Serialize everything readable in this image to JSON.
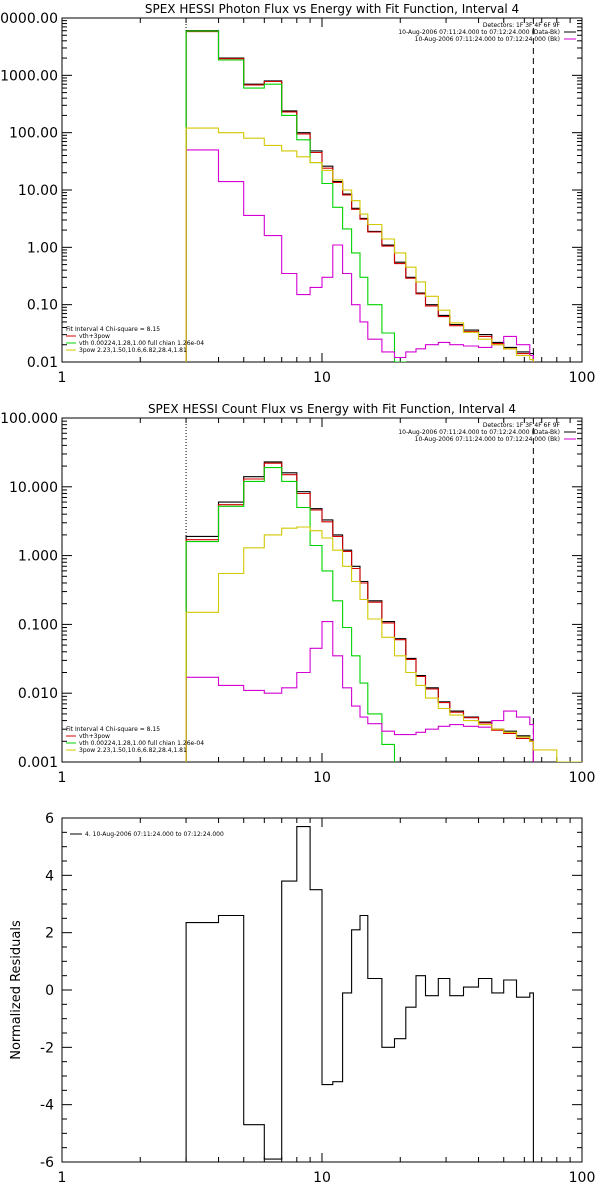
{
  "colors": {
    "black": "#000000",
    "red": "#d40000",
    "green": "#00d400",
    "magenta": "#d400d4",
    "gold": "#d4c800"
  },
  "chart_data": [
    {
      "type": "line",
      "title": "SPEX HESSI Photon Flux vs Energy with Fit Function, Interval 4",
      "xlabel": "",
      "ylabel": "",
      "x_scale": "log",
      "y_scale": "log",
      "xlim": [
        1,
        100
      ],
      "ylim": [
        0.01,
        10000
      ],
      "x_ticks": [
        "1",
        "10",
        "100"
      ],
      "y_ticks": [
        "0.01",
        "0.10",
        "1.00",
        "10.00",
        "100.00",
        "1000.00",
        "10000.00"
      ],
      "vlines": [
        {
          "x": 3,
          "style": "dotted"
        },
        {
          "x": 65,
          "style": "dashed"
        }
      ],
      "legend_top": [
        "Detectors: 1F 3F 4F 6F 9F",
        "10-Aug-2006 07:11:24.000 to 07:12:24.000 (Data-Bk)",
        "10-Aug-2006 07:11:24.000 to 07:12:24.000 (Bk)"
      ],
      "legend_bottom": [
        "Fit Interval 4   Chi-square = 8.15",
        "vth+3pow",
        "vth 0.00224,1.28,1.00  full chian 1.26e-04",
        "3pow 2.23,1.50,10.6,6.82,28.4,1.81"
      ],
      "edges": [
        3,
        4,
        5,
        6,
        7,
        8,
        9,
        10,
        11,
        12,
        13,
        14,
        15,
        17,
        19,
        21,
        23,
        25,
        28,
        31,
        35,
        40,
        45,
        50,
        56,
        63,
        65
      ],
      "series": [
        {
          "name": "Data-Bk",
          "color": "#000000",
          "values": [
            6000,
            2000,
            700,
            800,
            240,
            100,
            48,
            26,
            14,
            8.5,
            4.8,
            3.2,
            1.9,
            1.1,
            0.55,
            0.3,
            0.16,
            0.1,
            0.065,
            0.045,
            0.036,
            0.03,
            0.022,
            0.018,
            0.015,
            0.014
          ],
          "ranges": [
            [
              0,
              25
            ]
          ]
        },
        {
          "name": "vth+3pow",
          "color": "#d40000",
          "values": [
            5800,
            1950,
            680,
            780,
            230,
            95,
            45,
            24,
            13.5,
            8.2,
            4.6,
            3.1,
            1.85,
            1.05,
            0.52,
            0.29,
            0.155,
            0.095,
            0.062,
            0.043,
            0.034,
            0.028,
            0.021,
            0.017,
            0.014,
            0.013
          ],
          "ranges": [
            [
              0,
              25
            ]
          ]
        },
        {
          "name": "vth",
          "color": "#00d400",
          "values": [
            5900,
            1850,
            600,
            700,
            200,
            75,
            30,
            13,
            5,
            2.1,
            0.8,
            0.3,
            0.1,
            0.032,
            0.01,
            0.003
          ],
          "ranges": [
            [
              0,
              15
            ]
          ]
        },
        {
          "name": "Bk",
          "color": "#d400d4",
          "values": [
            50,
            14,
            3.6,
            1.6,
            0.35,
            0.15,
            0.2,
            0.3,
            1.1,
            0.35,
            0.1,
            0.05,
            0.025,
            0.015,
            0.012,
            0.015,
            0.017,
            0.02,
            0.022,
            0.02,
            0.019,
            0.018,
            0.02,
            0.028,
            0.02,
            0.013
          ],
          "ranges": [
            [
              0,
              25
            ]
          ]
        },
        {
          "name": "3pow",
          "color": "#d4c800",
          "values": [
            120,
            100,
            80,
            60,
            48,
            38,
            30,
            22,
            15,
            10,
            6.5,
            3.8,
            2.5,
            1.4,
            0.8,
            0.45,
            0.25,
            0.14,
            0.08,
            0.048,
            0.033,
            0.025,
            0.02,
            0.017,
            0.013,
            0.011
          ],
          "ranges": [
            [
              0,
              25
            ]
          ]
        }
      ]
    },
    {
      "type": "line",
      "title": "SPEX HESSI Count Flux vs Energy with Fit Function, Interval 4",
      "xlabel": "",
      "ylabel": "",
      "x_scale": "log",
      "y_scale": "log",
      "xlim": [
        1,
        100
      ],
      "ylim": [
        0.001,
        100
      ],
      "x_ticks": [
        "1",
        "10",
        "100"
      ],
      "y_ticks": [
        "0.001",
        "0.010",
        "0.100",
        "1.000",
        "10.000",
        "100.000"
      ],
      "vlines": [
        {
          "x": 3,
          "style": "dotted"
        },
        {
          "x": 65,
          "style": "dashed"
        }
      ],
      "legend_top": [
        "Detectors: 1F 3F 4F 6F 9F",
        "10-Aug-2006 07:11:24.000 to 07:12:24.000 (Data-Bk)",
        "10-Aug-2006 07:11:24.000 to 07:12:24.000 (Bk)"
      ],
      "legend_bottom": [
        "Fit Interval 4   Chi-square = 8.15",
        "vth+3pow",
        "vth 0.00224,1.28,1.00  full chian 1.26e-04",
        "3pow 2.23,1.50,10.6,6.82,28.4,1.81"
      ],
      "edges": [
        3,
        4,
        5,
        6,
        7,
        8,
        9,
        10,
        11,
        12,
        13,
        14,
        15,
        17,
        19,
        21,
        23,
        25,
        28,
        31,
        35,
        40,
        45,
        50,
        56,
        63,
        65,
        80,
        100
      ],
      "series": [
        {
          "name": "Data-Bk",
          "color": "#000000",
          "values": [
            1.9,
            6,
            14,
            23,
            16,
            8.5,
            4.8,
            3.3,
            2,
            1.2,
            0.7,
            0.42,
            0.22,
            0.11,
            0.062,
            0.032,
            0.018,
            0.012,
            0.0075,
            0.0055,
            0.0045,
            0.0038,
            0.003,
            0.0028,
            0.0024,
            0.0021
          ],
          "ranges": [
            [
              0,
              25
            ]
          ]
        },
        {
          "name": "vth+3pow",
          "color": "#d40000",
          "values": [
            1.7,
            5.5,
            13,
            22,
            15,
            8,
            4.6,
            3.1,
            1.9,
            1.15,
            0.65,
            0.4,
            0.21,
            0.105,
            0.06,
            0.031,
            0.0175,
            0.0115,
            0.0073,
            0.0053,
            0.0044,
            0.0037,
            0.0029,
            0.0026,
            0.0022,
            0.002
          ],
          "ranges": [
            [
              0,
              25
            ]
          ]
        },
        {
          "name": "vth",
          "color": "#00d400",
          "values": [
            1.6,
            5.2,
            12,
            19,
            12,
            5,
            1.4,
            0.6,
            0.22,
            0.09,
            0.035,
            0.014,
            0.005,
            0.0018,
            0.0008
          ],
          "ranges": [
            [
              0,
              14
            ]
          ]
        },
        {
          "name": "Bk",
          "color": "#d400d4",
          "values": [
            0.017,
            0.013,
            0.011,
            0.01,
            0.012,
            0.02,
            0.045,
            0.11,
            0.035,
            0.012,
            0.0065,
            0.0045,
            0.0036,
            0.0028,
            0.0025,
            0.0025,
            0.0027,
            0.003,
            0.0033,
            0.0035,
            0.0033,
            0.0032,
            0.004,
            0.0055,
            0.0045,
            0.0035
          ],
          "ranges": [
            [
              0,
              25
            ]
          ]
        },
        {
          "name": "3pow",
          "color": "#d4c800",
          "values": [
            0.15,
            0.55,
            1.3,
            2,
            2.5,
            2.6,
            2.3,
            1.8,
            1.2,
            0.7,
            0.42,
            0.23,
            0.12,
            0.065,
            0.035,
            0.02,
            0.013,
            0.0085,
            0.006,
            0.0048,
            0.004,
            0.0035,
            0.003,
            0.0027,
            0.0023,
            0.002,
            0.0015,
            0.001
          ],
          "ranges": [
            [
              0,
              27
            ]
          ]
        }
      ]
    },
    {
      "type": "line",
      "title": "",
      "xlabel": "",
      "ylabel": "Normalized Residuals",
      "x_scale": "log",
      "y_scale": "linear",
      "xlim": [
        1,
        100
      ],
      "ylim": [
        -6,
        6
      ],
      "x_ticks": [
        "1",
        "10",
        "100"
      ],
      "y_ticks": [
        "-6",
        "-4",
        "-2",
        "0",
        "2",
        "4",
        "6"
      ],
      "legend_top": [],
      "legend_bottom": [],
      "legend_left": "4. 10-Aug-2006 07:11:24.000 to 07:12:24.000",
      "edges": [
        3,
        4,
        5,
        6,
        7,
        8,
        9,
        10,
        11,
        12,
        13,
        14,
        15,
        17,
        19,
        21,
        23,
        25,
        28,
        31,
        35,
        40,
        45,
        50,
        56,
        63,
        65
      ],
      "series": [
        {
          "name": "4. 10-Aug-2006 07:11:24.000 to 07:12:24.000",
          "color": "#000000",
          "values": [
            2.35,
            2.6,
            -4.7,
            -5.9,
            3.8,
            5.7,
            3.5,
            -3.3,
            -3.2,
            -0.1,
            2.1,
            2.6,
            0.4,
            -2,
            -1.7,
            -0.6,
            0.5,
            -0.2,
            0.4,
            -0.2,
            0.1,
            0.4,
            -0.1,
            0.35,
            -0.25,
            -0.1
          ],
          "ranges": [
            [
              0,
              25
            ]
          ]
        }
      ]
    }
  ]
}
